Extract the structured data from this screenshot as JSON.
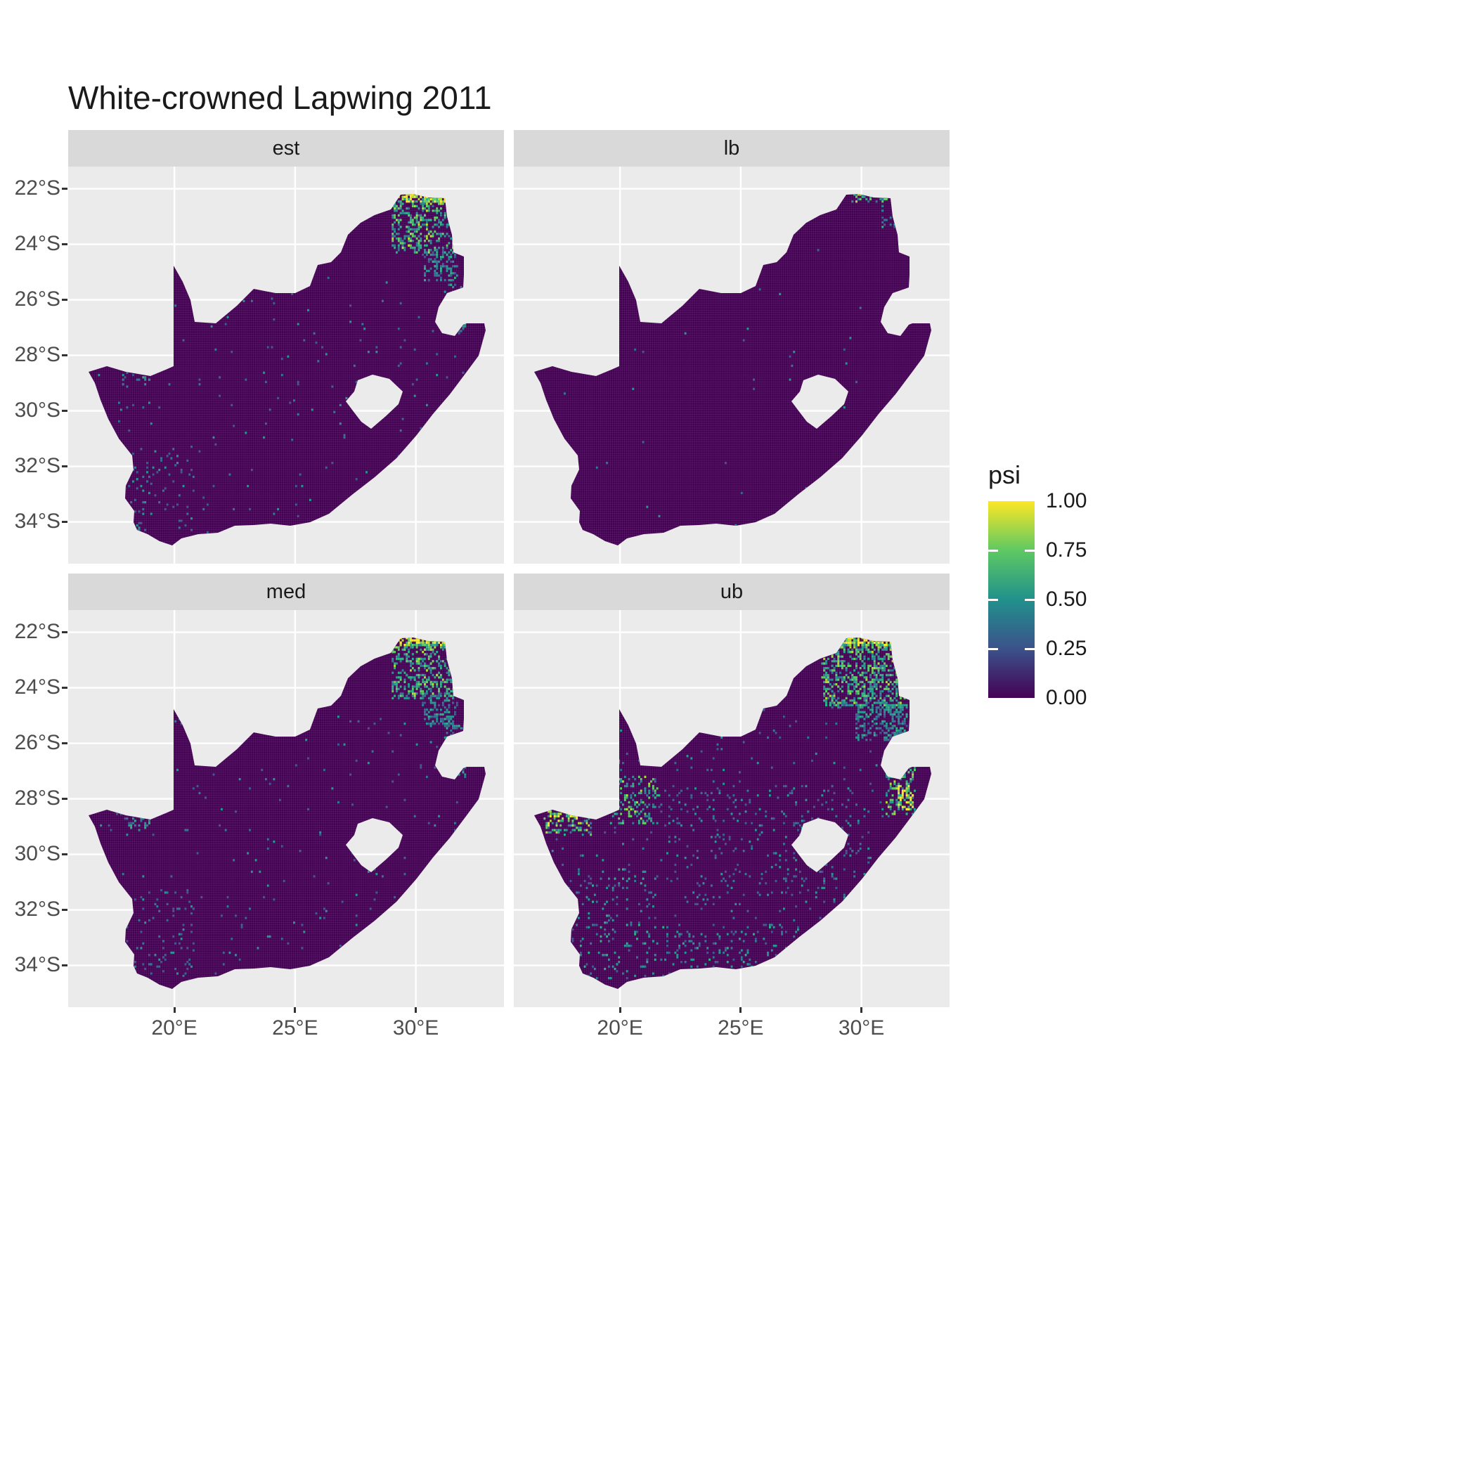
{
  "title": "White-crowned Lapwing 2011",
  "facets": [
    {
      "id": "est",
      "label": "est"
    },
    {
      "id": "lb",
      "label": "lb"
    },
    {
      "id": "med",
      "label": "med"
    },
    {
      "id": "ub",
      "label": "ub"
    }
  ],
  "axes": {
    "y_ticks": [
      "22°S",
      "24°S",
      "26°S",
      "28°S",
      "30°S",
      "32°S",
      "34°S"
    ],
    "x_ticks": [
      "20°E",
      "25°E",
      "30°E"
    ]
  },
  "legend": {
    "title": "psi",
    "tick_labels": [
      "1.00",
      "0.75",
      "0.50",
      "0.25",
      "0.00"
    ],
    "tick_values": [
      1.0,
      0.75,
      0.5,
      0.25,
      0.0
    ]
  },
  "colors": {
    "plot_bg": "#FFFFFF",
    "panel_bg": "#EBEBEB",
    "strip_bg": "#D9D9D9",
    "strip_text": "#1A1A1A",
    "axis_text": "#4D4D4D",
    "grid": "#FFFFFF",
    "map_base": "#440154",
    "viridis_stops": [
      [
        0,
        "#440154"
      ],
      [
        0.25,
        "#3B528B"
      ],
      [
        0.5,
        "#21918C"
      ],
      [
        0.75,
        "#5EC962"
      ],
      [
        1,
        "#FDE725"
      ]
    ],
    "mixes": {
      "faint": [
        [
          "#3b528b",
          5
        ],
        [
          "#355f8d",
          3
        ],
        [
          "#21918c",
          3
        ],
        [
          "#2c728e",
          2
        ]
      ],
      "teal": [
        [
          "#2c728e",
          3
        ],
        [
          "#21918c",
          4
        ],
        [
          "#27ad81",
          2
        ],
        [
          "#3b528b",
          2
        ]
      ],
      "green": [
        [
          "#21918c",
          3
        ],
        [
          "#27ad81",
          3
        ],
        [
          "#5ec962",
          3
        ],
        [
          "#2c728e",
          2
        ],
        [
          "#aadc32",
          1
        ]
      ],
      "hot": [
        [
          "#5ec962",
          2
        ],
        [
          "#aadc32",
          3
        ],
        [
          "#fde725",
          5
        ],
        [
          "#27ad81",
          1
        ]
      ]
    }
  },
  "chart_data": {
    "type": "heatmap",
    "title": "White-crowned Lapwing 2011",
    "variable": "psi",
    "region": "South Africa",
    "x": {
      "label": "longitude",
      "unit": "°E",
      "ticks": [
        20,
        25,
        30
      ],
      "range": [
        15.6,
        33.65
      ]
    },
    "y": {
      "label": "latitude",
      "unit": "°S",
      "ticks": [
        22,
        24,
        26,
        28,
        30,
        32,
        34
      ],
      "range": [
        21.2,
        35.5
      ]
    },
    "color_scale": {
      "name": "viridis",
      "limits": [
        0,
        1
      ],
      "ticks": [
        0,
        0.25,
        0.5,
        0.75,
        1
      ],
      "legend_position": "right"
    },
    "summary": "Occupancy probability (psi) of White-crowned Lapwing in 2011 across gridded South Africa, faceted by est (estimate), lb (lower bound), med (median) and ub (upper bound). psi is near 0 almost everywhere; elevated values (teal/green/yellow, up to ~1.0) concentrate in the far northeast (~22-25°S, 29-32°E). lb is near zero everywhere; ub shows widespread scattered elevated cells including the northwest (~20°E,28°S), the west coast (~28.5-29°S) and the southern coast.",
    "facets": [
      {
        "name": "est",
        "hotspots": [
          {
            "lon": [
              29.3,
              31.4
            ],
            "lat": [
              22.1,
              22.5
            ],
            "n": 130,
            "mix": "hot"
          },
          {
            "lon": [
              29.0,
              31.6
            ],
            "lat": [
              22.4,
              24.3
            ],
            "n": 360,
            "mix": "green"
          },
          {
            "lon": [
              30.3,
              31.7
            ],
            "lat": [
              24.2,
              25.3
            ],
            "n": 120,
            "mix": "teal"
          },
          {
            "lon": [
              31.2,
              32.1
            ],
            "lat": [
              25.3,
              27.2
            ],
            "n": 90,
            "mix": "teal"
          },
          {
            "lon": [
              17.8,
              19.0
            ],
            "lat": [
              28.4,
              29.1
            ],
            "n": 25,
            "mix": "teal"
          },
          {
            "lon": [
              18.0,
              20.8
            ],
            "lat": [
              31.3,
              34.4
            ],
            "n": 70,
            "mix": "faint"
          },
          {
            "lon": [
              16.9,
              32.0
            ],
            "lat": [
              25.0,
              34.8
            ],
            "n": 200,
            "mix": "faint"
          }
        ]
      },
      {
        "name": "lb",
        "hotspots": [
          {
            "lon": [
              29.6,
              31.2
            ],
            "lat": [
              22.1,
              22.45
            ],
            "n": 50,
            "mix": "green"
          },
          {
            "lon": [
              30.8,
              31.6
            ],
            "lat": [
              22.4,
              23.4
            ],
            "n": 28,
            "mix": "teal"
          },
          {
            "lon": [
              16.9,
              32.0
            ],
            "lat": [
              24.0,
              34.8
            ],
            "n": 45,
            "mix": "faint"
          }
        ]
      },
      {
        "name": "med",
        "hotspots": [
          {
            "lon": [
              29.3,
              31.4
            ],
            "lat": [
              22.1,
              22.5
            ],
            "n": 150,
            "mix": "hot"
          },
          {
            "lon": [
              29.0,
              31.6
            ],
            "lat": [
              22.4,
              24.4
            ],
            "n": 400,
            "mix": "green"
          },
          {
            "lon": [
              30.3,
              31.7
            ],
            "lat": [
              24.2,
              25.4
            ],
            "n": 140,
            "mix": "teal"
          },
          {
            "lon": [
              31.2,
              32.1
            ],
            "lat": [
              25.3,
              27.2
            ],
            "n": 100,
            "mix": "teal"
          },
          {
            "lon": [
              17.8,
              19.0
            ],
            "lat": [
              28.4,
              29.1
            ],
            "n": 30,
            "mix": "teal"
          },
          {
            "lon": [
              18.0,
              20.8
            ],
            "lat": [
              31.3,
              34.4
            ],
            "n": 80,
            "mix": "faint"
          },
          {
            "lon": [
              16.9,
              32.0
            ],
            "lat": [
              25.0,
              34.8
            ],
            "n": 240,
            "mix": "faint"
          }
        ]
      },
      {
        "name": "ub",
        "hotspots": [
          {
            "lon": [
              29.0,
              31.6
            ],
            "lat": [
              22.1,
              22.5
            ],
            "n": 170,
            "mix": "hot"
          },
          {
            "lon": [
              28.4,
              31.8
            ],
            "lat": [
              22.4,
              24.7
            ],
            "n": 650,
            "mix": "green"
          },
          {
            "lon": [
              29.8,
              31.9
            ],
            "lat": [
              24.6,
              25.9
            ],
            "n": 220,
            "mix": "teal"
          },
          {
            "lon": [
              31.0,
              32.2
            ],
            "lat": [
              25.9,
              28.6
            ],
            "n": 200,
            "mix": "green"
          },
          {
            "lon": [
              31.5,
              32.2
            ],
            "lat": [
              27.5,
              28.4
            ],
            "n": 45,
            "mix": "hot"
          },
          {
            "lon": [
              19.6,
              21.6
            ],
            "lat": [
              27.2,
              28.9
            ],
            "n": 150,
            "mix": "green"
          },
          {
            "lon": [
              16.9,
              18.9
            ],
            "lat": [
              28.3,
              29.3
            ],
            "n": 90,
            "mix": "green"
          },
          {
            "lon": [
              17.0,
              18.3
            ],
            "lat": [
              28.5,
              29.0
            ],
            "n": 25,
            "mix": "hot"
          },
          {
            "lon": [
              17.8,
              21.5
            ],
            "lat": [
              30.5,
              34.5
            ],
            "n": 170,
            "mix": "teal"
          },
          {
            "lon": [
              21.5,
              27.5
            ],
            "lat": [
              32.5,
              34.6
            ],
            "n": 150,
            "mix": "teal"
          },
          {
            "lon": [
              22.0,
              30.5
            ],
            "lat": [
              27.5,
              31.8
            ],
            "n": 260,
            "mix": "faint"
          },
          {
            "lon": [
              16.9,
              32.0
            ],
            "lat": [
              24.5,
              34.8
            ],
            "n": 420,
            "mix": "faint"
          }
        ]
      }
    ]
  }
}
